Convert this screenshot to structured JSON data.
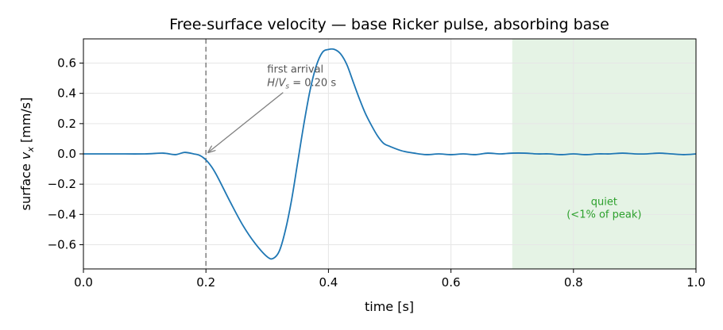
{
  "chart_data": {
    "type": "line",
    "title": "Free-surface velocity — base Ricker pulse, absorbing base",
    "xlabel": "time [s]",
    "ylabel": "surface v_x [mm/s]",
    "xlim": [
      0.0,
      1.0
    ],
    "ylim": [
      -0.76,
      0.76
    ],
    "xticks": [
      0.0,
      0.2,
      0.4,
      0.6,
      0.8,
      1.0
    ],
    "xtick_labels": [
      "0.0",
      "0.2",
      "0.4",
      "0.6",
      "0.8",
      "1.0"
    ],
    "yticks": [
      -0.6,
      -0.4,
      -0.2,
      0.0,
      0.2,
      0.4,
      0.6
    ],
    "ytick_labels": [
      "−0.6",
      "−0.4",
      "−0.2",
      "0.0",
      "0.2",
      "0.4",
      "0.6"
    ],
    "grid": true,
    "series": [
      {
        "color": "#1f77b4",
        "x": [
          0.0,
          0.05,
          0.1,
          0.13,
          0.15,
          0.165,
          0.18,
          0.19,
          0.2,
          0.21,
          0.22,
          0.24,
          0.26,
          0.28,
          0.3,
          0.31,
          0.32,
          0.33,
          0.34,
          0.35,
          0.36,
          0.37,
          0.38,
          0.39,
          0.4,
          0.41,
          0.42,
          0.43,
          0.44,
          0.45,
          0.46,
          0.47,
          0.48,
          0.49,
          0.5,
          0.52,
          0.54,
          0.56,
          0.58,
          0.6,
          0.62,
          0.64,
          0.66,
          0.68,
          0.7,
          0.72,
          0.74,
          0.76,
          0.78,
          0.8,
          0.82,
          0.84,
          0.86,
          0.88,
          0.9,
          0.92,
          0.94,
          0.96,
          0.98,
          1.0
        ],
        "y": [
          0.0,
          0.0,
          0.0,
          0.005,
          -0.005,
          0.01,
          0.0,
          -0.01,
          -0.04,
          -0.09,
          -0.16,
          -0.32,
          -0.47,
          -0.59,
          -0.68,
          -0.69,
          -0.64,
          -0.5,
          -0.3,
          -0.05,
          0.2,
          0.42,
          0.58,
          0.67,
          0.69,
          0.69,
          0.66,
          0.59,
          0.48,
          0.37,
          0.27,
          0.19,
          0.12,
          0.07,
          0.05,
          0.02,
          0.005,
          -0.005,
          0.0,
          -0.005,
          0.0,
          -0.005,
          0.005,
          0.0,
          0.005,
          0.005,
          0.0,
          0.0,
          -0.005,
          0.0,
          -0.005,
          0.0,
          0.0,
          0.005,
          0.0,
          0.0,
          0.005,
          0.0,
          -0.005,
          0.0
        ]
      }
    ],
    "vline": {
      "x": 0.2,
      "color": "#7f7f7f",
      "style": "dashed"
    },
    "annotation": {
      "line1": "first arrival",
      "line2": "H/Vs = 0.20 s",
      "text_x": 0.3,
      "text_y": 0.5,
      "arrow_to_x": 0.2,
      "arrow_to_y": 0.0,
      "color": "#808080"
    },
    "shaded_region": {
      "x": [
        0.7,
        1.0
      ],
      "fill": "#2ca02c",
      "label_line1": "quiet",
      "label_line2": "(<1% of peak)",
      "label_color": "#2ca02c",
      "label_x": 0.85,
      "label_y": -0.38
    }
  }
}
